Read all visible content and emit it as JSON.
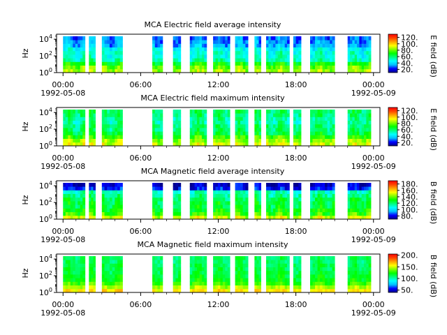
{
  "xaxis": {
    "tick_labels": [
      "00:00",
      "06:00",
      "12:00",
      "18:00",
      "00:00"
    ],
    "tick_hours": [
      0,
      6,
      12,
      18,
      24
    ],
    "date_start": "1992-05-08",
    "date_end": "1992-05-09",
    "range_hours": [
      -0.5,
      24.5
    ]
  },
  "yaxis": {
    "label": "Hz",
    "scale": "log",
    "tick_bases": [
      "10",
      "10",
      "10"
    ],
    "tick_exponents": [
      "0",
      "2",
      "4"
    ],
    "range_log10": [
      0,
      4.6
    ]
  },
  "colormap": [
    "#00008b",
    "#0000ff",
    "#00bfff",
    "#00ffff",
    "#00ff7f",
    "#00ff00",
    "#7fff00",
    "#ffff00",
    "#ffa500",
    "#ff4500",
    "#ff0000"
  ],
  "chart_data": [
    {
      "type": "heatmap",
      "title": "MCA  Electric field average intensity",
      "colorbar_label": "E field (dB)",
      "colorbar_range": [
        10,
        130
      ],
      "colorbar_ticks": [
        "20.",
        "40.",
        "60.",
        "80.",
        "100.",
        "120."
      ],
      "colorbar_tick_values": [
        20,
        40,
        60,
        80,
        100,
        120
      ],
      "profile": [
        85,
        80,
        70,
        55,
        50,
        50,
        45,
        35,
        32,
        30
      ],
      "data_intervals_hours": [
        [
          0.0,
          1.7
        ],
        [
          2.0,
          2.5
        ],
        [
          3.0,
          4.6
        ],
        [
          6.9,
          7.7
        ],
        [
          8.5,
          9.1
        ],
        [
          9.8,
          11.1
        ],
        [
          11.6,
          12.9
        ],
        [
          13.3,
          14.3
        ],
        [
          14.8,
          15.3
        ],
        [
          15.7,
          17.5
        ],
        [
          17.8,
          18.4
        ],
        [
          19.1,
          21.0
        ],
        [
          22.0,
          23.8
        ]
      ]
    },
    {
      "type": "heatmap",
      "title": "MCA  Electric field maximum intensity",
      "colorbar_label": "E field (dB)",
      "colorbar_range": [
        10,
        130
      ],
      "colorbar_ticks": [
        "20.",
        "40.",
        "60.",
        "80.",
        "100.",
        "120."
      ],
      "colorbar_tick_values": [
        20,
        40,
        60,
        80,
        100,
        120
      ],
      "profile": [
        90,
        85,
        75,
        65,
        60,
        60,
        55,
        55,
        60,
        62
      ],
      "data_intervals_hours": [
        [
          0.0,
          1.7
        ],
        [
          2.0,
          2.5
        ],
        [
          3.0,
          4.6
        ],
        [
          6.9,
          7.7
        ],
        [
          8.5,
          9.1
        ],
        [
          9.8,
          11.1
        ],
        [
          11.6,
          12.9
        ],
        [
          13.3,
          14.3
        ],
        [
          14.8,
          15.3
        ],
        [
          15.7,
          17.5
        ],
        [
          17.8,
          18.4
        ],
        [
          19.1,
          21.0
        ],
        [
          22.0,
          23.8
        ]
      ]
    },
    {
      "type": "heatmap",
      "title": "MCA  Magnetic field average intensity",
      "colorbar_label": "B field (dB)",
      "colorbar_range": [
        70,
        190
      ],
      "colorbar_ticks": [
        "80.",
        "100.",
        "120.",
        "140.",
        "160.",
        "180."
      ],
      "colorbar_tick_values": [
        80,
        100,
        120,
        140,
        160,
        180
      ],
      "profile": [
        150,
        135,
        130,
        125,
        125,
        122,
        118,
        112,
        82,
        76
      ],
      "data_intervals_hours": [
        [
          0.0,
          1.7
        ],
        [
          2.0,
          2.5
        ],
        [
          3.0,
          4.6
        ],
        [
          6.9,
          7.7
        ],
        [
          8.5,
          9.1
        ],
        [
          9.8,
          11.1
        ],
        [
          11.6,
          12.9
        ],
        [
          13.3,
          14.3
        ],
        [
          14.8,
          15.3
        ],
        [
          15.7,
          17.5
        ],
        [
          17.8,
          18.4
        ],
        [
          19.1,
          21.0
        ],
        [
          22.0,
          23.8
        ]
      ]
    },
    {
      "type": "heatmap",
      "title": "MCA  Magnetic field maximum intensity",
      "colorbar_label": "B field (dB)",
      "colorbar_range": [
        40,
        205
      ],
      "colorbar_ticks": [
        "50.",
        "100.",
        "150.",
        "200."
      ],
      "colorbar_tick_values": [
        50,
        100,
        150,
        200
      ],
      "profile": [
        160,
        145,
        130,
        120,
        118,
        115,
        113,
        113,
        110,
        110
      ],
      "data_intervals_hours": [
        [
          0.0,
          1.7
        ],
        [
          2.0,
          2.5
        ],
        [
          3.0,
          4.6
        ],
        [
          6.9,
          7.7
        ],
        [
          8.5,
          9.1
        ],
        [
          9.8,
          11.1
        ],
        [
          11.6,
          12.9
        ],
        [
          13.3,
          14.3
        ],
        [
          14.8,
          15.3
        ],
        [
          15.7,
          17.5
        ],
        [
          17.8,
          18.4
        ],
        [
          19.1,
          21.0
        ],
        [
          22.0,
          23.8
        ]
      ]
    }
  ]
}
